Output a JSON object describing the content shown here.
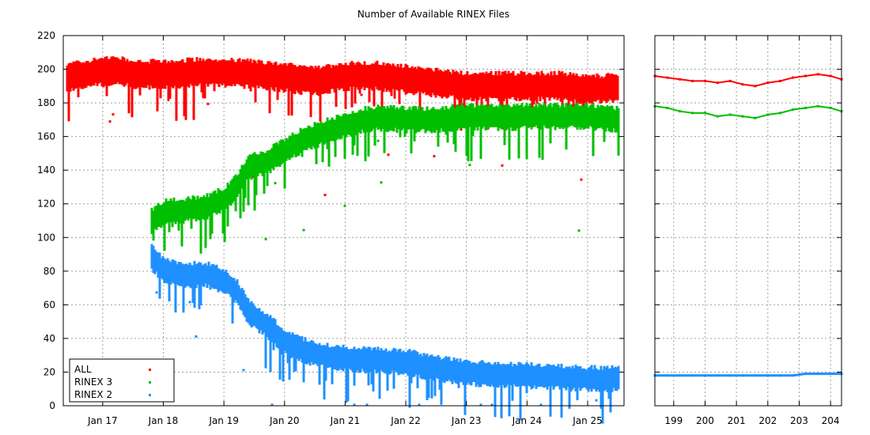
{
  "chart_data": {
    "type": "scatter",
    "title": "Number of Available RINEX Files",
    "colors": {
      "ALL": "#ff0000",
      "RINEX 3": "#00bf00",
      "RINEX 2": "#1e90ff"
    },
    "panels": [
      {
        "name": "history",
        "xlabel": "",
        "ylabel": "",
        "xlim": [
          2016.35,
          2025.6
        ],
        "ylim": [
          0,
          220
        ],
        "x_ticks": [
          {
            "value": 2017,
            "label": "Jan 17"
          },
          {
            "value": 2018,
            "label": "Jan 18"
          },
          {
            "value": 2019,
            "label": "Jan 19"
          },
          {
            "value": 2020,
            "label": "Jan 20"
          },
          {
            "value": 2021,
            "label": "Jan 21"
          },
          {
            "value": 2022,
            "label": "Jan 22"
          },
          {
            "value": 2023,
            "label": "Jan 23"
          },
          {
            "value": 2024,
            "label": "Jan 24"
          },
          {
            "value": 2025,
            "label": "Jan 25"
          }
        ],
        "y_ticks": [
          0,
          20,
          40,
          60,
          80,
          100,
          120,
          140,
          160,
          180,
          200,
          220
        ],
        "grid": true,
        "legend_position": "bottom-left",
        "series": [
          {
            "name": "ALL",
            "points": [
              [
                2016.4,
                195
              ],
              [
                2016.8,
                198
              ],
              [
                2017.2,
                199
              ],
              [
                2017.6,
                197
              ],
              [
                2018.0,
                197
              ],
              [
                2018.5,
                198
              ],
              [
                2019.0,
                198
              ],
              [
                2019.5,
                197
              ],
              [
                2020.0,
                195
              ],
              [
                2020.5,
                193
              ],
              [
                2021.0,
                196
              ],
              [
                2021.5,
                196
              ],
              [
                2022.0,
                194
              ],
              [
                2022.5,
                192
              ],
              [
                2023.0,
                190
              ],
              [
                2023.5,
                190
              ],
              [
                2024.0,
                190
              ],
              [
                2024.5,
                190
              ],
              [
                2025.0,
                188
              ],
              [
                2025.5,
                189
              ]
            ]
          },
          {
            "name": "RINEX 3",
            "points": [
              [
                2017.8,
                110
              ],
              [
                2018.0,
                115
              ],
              [
                2018.3,
                116
              ],
              [
                2018.7,
                118
              ],
              [
                2019.0,
                123
              ],
              [
                2019.2,
                130
              ],
              [
                2019.4,
                142
              ],
              [
                2019.7,
                145
              ],
              [
                2020.0,
                152
              ],
              [
                2020.3,
                158
              ],
              [
                2020.6,
                162
              ],
              [
                2021.0,
                167
              ],
              [
                2021.3,
                170
              ],
              [
                2021.6,
                171
              ],
              [
                2022.0,
                170
              ],
              [
                2022.5,
                170
              ],
              [
                2023.0,
                172
              ],
              [
                2023.5,
                171
              ],
              [
                2024.0,
                172
              ],
              [
                2024.5,
                172
              ],
              [
                2025.0,
                172
              ],
              [
                2025.5,
                170
              ]
            ]
          },
          {
            "name": "RINEX 2",
            "points": [
              [
                2017.8,
                88
              ],
              [
                2018.0,
                80
              ],
              [
                2018.3,
                78
              ],
              [
                2018.7,
                78
              ],
              [
                2019.0,
                74
              ],
              [
                2019.2,
                68
              ],
              [
                2019.4,
                55
              ],
              [
                2019.7,
                48
              ],
              [
                2020.0,
                38
              ],
              [
                2020.3,
                33
              ],
              [
                2020.6,
                30
              ],
              [
                2021.0,
                28
              ],
              [
                2021.5,
                27
              ],
              [
                2022.0,
                26
              ],
              [
                2022.5,
                22
              ],
              [
                2023.0,
                20
              ],
              [
                2023.5,
                18
              ],
              [
                2024.0,
                18
              ],
              [
                2024.5,
                17
              ],
              [
                2025.0,
                16
              ],
              [
                2025.5,
                16
              ]
            ]
          }
        ]
      },
      {
        "name": "recent-days",
        "xlabel": "",
        "ylabel": "",
        "xlim": [
          198.4,
          204.35
        ],
        "ylim": [
          0,
          220
        ],
        "x_ticks": [
          {
            "value": 199,
            "label": "199"
          },
          {
            "value": 200,
            "label": "200"
          },
          {
            "value": 201,
            "label": "201"
          },
          {
            "value": 202,
            "label": "202"
          },
          {
            "value": 203,
            "label": "203"
          },
          {
            "value": 204,
            "label": "204"
          }
        ],
        "grid": true,
        "series": [
          {
            "name": "ALL",
            "points": [
              [
                198.4,
                196
              ],
              [
                198.8,
                195
              ],
              [
                199.2,
                194
              ],
              [
                199.6,
                193
              ],
              [
                200.0,
                193
              ],
              [
                200.4,
                192
              ],
              [
                200.8,
                193
              ],
              [
                201.2,
                191
              ],
              [
                201.6,
                190
              ],
              [
                202.0,
                192
              ],
              [
                202.4,
                193
              ],
              [
                202.8,
                195
              ],
              [
                203.2,
                196
              ],
              [
                203.6,
                197
              ],
              [
                204.0,
                196
              ],
              [
                204.35,
                194
              ]
            ]
          },
          {
            "name": "RINEX 3",
            "points": [
              [
                198.4,
                178
              ],
              [
                198.8,
                177
              ],
              [
                199.2,
                175
              ],
              [
                199.6,
                174
              ],
              [
                200.0,
                174
              ],
              [
                200.4,
                172
              ],
              [
                200.8,
                173
              ],
              [
                201.2,
                172
              ],
              [
                201.6,
                171
              ],
              [
                202.0,
                173
              ],
              [
                202.4,
                174
              ],
              [
                202.8,
                176
              ],
              [
                203.2,
                177
              ],
              [
                203.6,
                178
              ],
              [
                204.0,
                177
              ],
              [
                204.35,
                175
              ]
            ]
          },
          {
            "name": "RINEX 2",
            "points": [
              [
                198.4,
                18
              ],
              [
                198.8,
                18
              ],
              [
                199.2,
                18
              ],
              [
                199.6,
                18
              ],
              [
                200.0,
                18
              ],
              [
                200.4,
                18
              ],
              [
                200.8,
                18
              ],
              [
                201.2,
                18
              ],
              [
                201.6,
                18
              ],
              [
                202.0,
                18
              ],
              [
                202.4,
                18
              ],
              [
                202.8,
                18
              ],
              [
                203.2,
                19
              ],
              [
                203.6,
                19
              ],
              [
                204.0,
                19
              ],
              [
                204.35,
                19
              ]
            ]
          }
        ]
      }
    ]
  }
}
